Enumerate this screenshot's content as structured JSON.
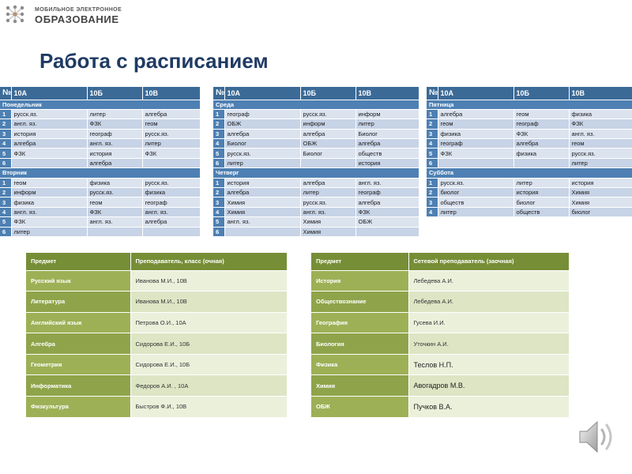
{
  "header": {
    "logo_line1": "МОБИЛЬНОЕ ЭЛЕКТРОННОЕ",
    "logo_line2": "ОБРАЗОВАНИЕ",
    "title": "Работа с расписанием"
  },
  "schedules": [
    {
      "head": [
        "№",
        "10А",
        "10Б",
        "10В"
      ],
      "days": [
        {
          "name": "Понедельник",
          "rows": [
            [
              "1",
              "русск.яз.",
              "литер",
              "алгебра"
            ],
            [
              "2",
              "англ. яз.",
              "ФЗК",
              "геом"
            ],
            [
              "3",
              "история",
              "географ",
              "русск.яз."
            ],
            [
              "4",
              "алгебра",
              "англ. яз.",
              "литер"
            ],
            [
              "5",
              "ФЗК",
              "история",
              "ФЗК"
            ],
            [
              "6",
              "",
              "алгебра",
              ""
            ]
          ]
        },
        {
          "name": "Вторник",
          "rows": [
            [
              "1",
              "геом",
              "физика",
              "русск.яз."
            ],
            [
              "2",
              "информ",
              "русск.яз.",
              "физика"
            ],
            [
              "3",
              "физика",
              "геом",
              "географ"
            ],
            [
              "4",
              "англ. яз.",
              "ФЗК",
              "англ. яз."
            ],
            [
              "5",
              "ФЗК",
              "англ. яз.",
              "алгебра"
            ],
            [
              "6",
              "литер",
              "",
              ""
            ]
          ]
        }
      ]
    },
    {
      "head": [
        "№",
        "10А",
        "10Б",
        "10В"
      ],
      "days": [
        {
          "name": "Среда",
          "rows": [
            [
              "1",
              "географ",
              "русск.яз.",
              "информ"
            ],
            [
              "2",
              "ОБЖ",
              "информ",
              "литер"
            ],
            [
              "3",
              "алгебра",
              "алгебра",
              "Биолог"
            ],
            [
              "4",
              "Биолог",
              "ОБЖ",
              "алгебра"
            ],
            [
              "5",
              "русск.яз.",
              "Биолог",
              "обществ"
            ],
            [
              "6",
              "литер",
              "",
              "история"
            ]
          ]
        },
        {
          "name": "Четверг",
          "rows": [
            [
              "1",
              "история",
              "алгебра",
              "англ. яз."
            ],
            [
              "2",
              "алгебра",
              "литер",
              "географ"
            ],
            [
              "3",
              "Химия",
              "русск.яз.",
              "алгебра"
            ],
            [
              "4",
              "Химия",
              "англ. яз.",
              "ФЗК"
            ],
            [
              "5",
              "англ. яз.",
              "Химия",
              "ОБЖ"
            ],
            [
              "6",
              "",
              "Химия",
              ""
            ]
          ]
        }
      ]
    },
    {
      "head": [
        "№",
        "10А",
        "10Б",
        "10В"
      ],
      "days": [
        {
          "name": "Пятница",
          "rows": [
            [
              "1",
              "алгебра",
              "геом",
              "физика"
            ],
            [
              "2",
              "геом",
              "географ",
              "ФЗК"
            ],
            [
              "3",
              "физика",
              "ФЗК",
              "англ. яз."
            ],
            [
              "4",
              "географ",
              "алгебра",
              "геом"
            ],
            [
              "5",
              "ФЗК",
              "физика",
              "русск.яз."
            ],
            [
              "6",
              "",
              "",
              "литер"
            ]
          ]
        },
        {
          "name": "Суббота",
          "rows": [
            [
              "1",
              "русск.яз.",
              "литер",
              "история"
            ],
            [
              "2",
              "биолог",
              "история",
              "Химия"
            ],
            [
              "3",
              "обществ",
              "биолог",
              "Химия"
            ],
            [
              "4",
              "литер",
              "обществ",
              "биолог"
            ]
          ]
        }
      ]
    }
  ],
  "teachers_fulltime": {
    "head": [
      "Предмет",
      "Преподаватель, класс (очная)"
    ],
    "rows": [
      [
        "Русский язык",
        "Иванова М.И.,  10В"
      ],
      [
        "Литература",
        "Иванова М.И.,  10В"
      ],
      [
        "Английский язык",
        "Петрова О.И.,  10А"
      ],
      [
        "Алгебра",
        "Сидорова Е.И., 10Б"
      ],
      [
        "Геометрия",
        "Сидорова Е.И., 10Б"
      ],
      [
        "Информатика",
        "Федоров А.И. , 10А"
      ],
      [
        "Физкультура",
        "Быстров Ф.И., 10В"
      ]
    ]
  },
  "teachers_remote": {
    "head": [
      "Предмет",
      "Сетевой преподаватель (заочная)"
    ],
    "rows": [
      [
        "История",
        "Лебедева А.И."
      ],
      [
        "Обществознание",
        "Лебедева А.И."
      ],
      [
        "География",
        "Гусева И.И."
      ],
      [
        "Биология",
        "Уточкин А.И."
      ],
      [
        "Физика",
        "Теслов Н.П."
      ],
      [
        "Химия",
        "Авогадров М.В."
      ],
      [
        "ОБЖ",
        "Пучков В.А."
      ]
    ]
  },
  "icons": {
    "logo": "network-logo-icon",
    "audio": "speaker-icon"
  },
  "colors": {
    "schedule_header": "#3c6a97",
    "schedule_day": "#4e80b3",
    "teacher_header": "#768e36",
    "teacher_subject": "#9eb056",
    "title": "#1f3b63"
  }
}
